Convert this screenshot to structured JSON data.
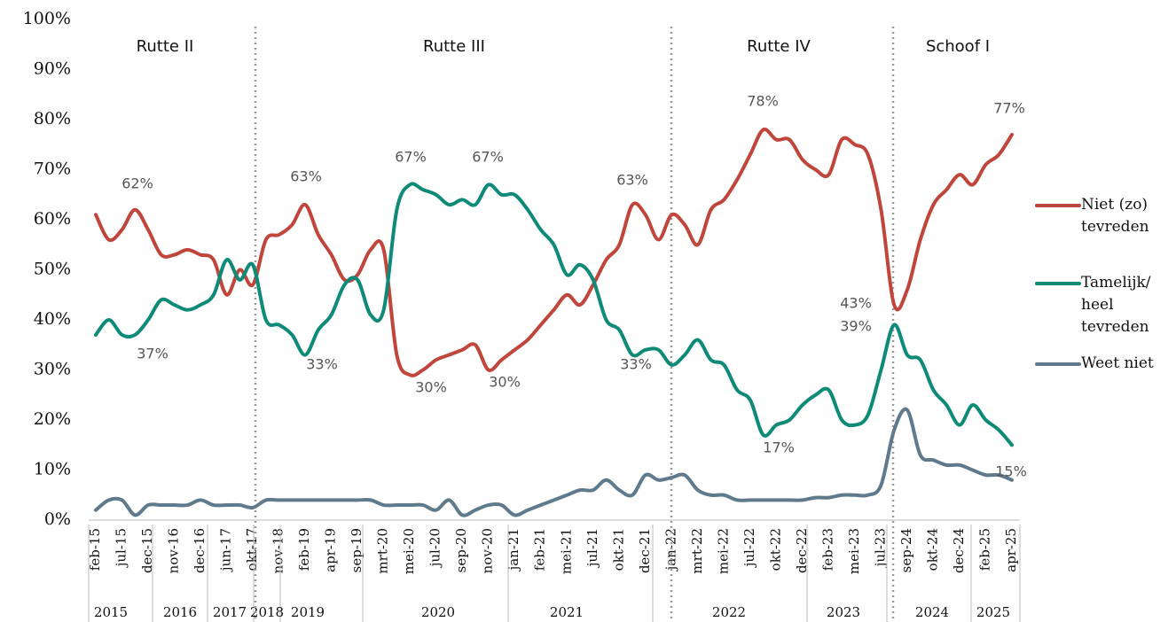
{
  "chart_data": {
    "type": "line",
    "categories": [
      "feb-15",
      null,
      "jul-15",
      null,
      "dec-15",
      null,
      "nov-16",
      null,
      "dec-16",
      null,
      "jun-17",
      null,
      "okt-17",
      null,
      "nov-18",
      null,
      "feb-19",
      null,
      "apr-19",
      null,
      "sep-19",
      null,
      "mrt-20",
      null,
      "mei-20",
      null,
      "jul-20",
      null,
      "sep-20",
      null,
      "nov-20",
      null,
      "jan-21",
      null,
      "feb-21",
      null,
      "mei-21",
      null,
      "jul-21",
      null,
      "okt-21",
      null,
      "dec-21",
      null,
      "jan-22",
      null,
      "mrt-22",
      null,
      "mei-22",
      null,
      "jul-22",
      null,
      "okt-22",
      null,
      "dec-22",
      null,
      "feb-23",
      null,
      "mei-23",
      null,
      "jul-23",
      null,
      "sep-24",
      null,
      "okt-24",
      null,
      "dec-24",
      null,
      "feb-25",
      null,
      "apr-25"
    ],
    "years": [
      "2015",
      "2016",
      "2017",
      "2018",
      "2019",
      "2020",
      "2021",
      "2022",
      "2023",
      "2024",
      "2025"
    ],
    "periods": [
      "Rutte II",
      "Rutte III",
      "Rutte IV",
      "Schoof I"
    ],
    "series": [
      {
        "name": "Niet (zo) tevreden",
        "color": "#c0463c",
        "values": [
          61,
          56,
          58,
          62,
          58,
          53,
          53,
          54,
          53,
          52,
          45,
          50,
          47,
          56,
          57,
          59,
          63,
          57,
          53,
          48,
          49,
          54,
          54,
          33,
          29,
          30,
          32,
          33,
          34,
          35,
          30,
          32,
          34,
          36,
          39,
          42,
          45,
          43,
          47,
          52,
          55,
          63,
          61,
          56,
          61,
          59,
          55,
          62,
          64,
          68,
          73,
          78,
          76,
          76,
          72,
          70,
          69,
          76,
          75,
          73,
          62,
          43,
          46,
          56,
          63,
          66,
          69,
          67,
          71,
          73,
          77
        ]
      },
      {
        "name": "Tamelijk/ heel tevreden",
        "color": "#0e8a78",
        "values": [
          37,
          40,
          37,
          37,
          40,
          44,
          43,
          42,
          43,
          45,
          52,
          48,
          51,
          40,
          39,
          37,
          33,
          38,
          41,
          47,
          48,
          41,
          42,
          62,
          67,
          66,
          65,
          63,
          64,
          63,
          67,
          65,
          65,
          62,
          58,
          55,
          49,
          51,
          48,
          40,
          38,
          33,
          34,
          34,
          31,
          33,
          36,
          32,
          31,
          26,
          24,
          17,
          19,
          20,
          23,
          25,
          26,
          20,
          19,
          21,
          30,
          39,
          33,
          32,
          26,
          23,
          19,
          23,
          20,
          18,
          15
        ]
      },
      {
        "name": "Weet niet",
        "color": "#5f7a8c",
        "values": [
          2,
          4,
          4,
          1,
          3,
          3,
          3,
          3,
          4,
          3,
          3,
          3,
          2.5,
          4,
          4,
          4,
          4,
          4,
          4,
          4,
          4,
          4,
          3,
          3,
          3,
          3,
          2,
          4,
          1,
          2,
          3,
          3,
          1,
          2,
          3,
          4,
          5,
          6,
          6,
          8,
          6,
          5,
          9,
          8,
          8.5,
          9,
          6,
          5,
          5,
          4,
          4,
          4,
          4,
          4,
          4,
          4.5,
          4.5,
          5,
          5,
          5,
          7,
          18,
          22,
          13,
          12,
          11,
          11,
          10,
          9,
          9,
          8
        ]
      }
    ],
    "annotations": [
      "62%",
      "37%",
      "63%",
      "33%",
      "67%",
      "67%",
      "30%",
      "30%",
      "63%",
      "33%",
      "78%",
      "17%",
      "43%",
      "39%",
      "77%",
      "15%"
    ],
    "ylim": [
      0,
      100
    ],
    "yticks": [
      {
        "value": 0,
        "label": "0%"
      },
      {
        "value": 10,
        "label": "10%"
      },
      {
        "value": 20,
        "label": "20%"
      },
      {
        "value": 30,
        "label": "30%"
      },
      {
        "value": 40,
        "label": "40%"
      },
      {
        "value": 50,
        "label": "50%"
      },
      {
        "value": 60,
        "label": "60%"
      },
      {
        "value": 70,
        "label": "70%"
      },
      {
        "value": 80,
        "label": "80%"
      },
      {
        "value": 90,
        "label": "90%"
      },
      {
        "value": 100,
        "label": "100%"
      }
    ],
    "grid": false
  }
}
